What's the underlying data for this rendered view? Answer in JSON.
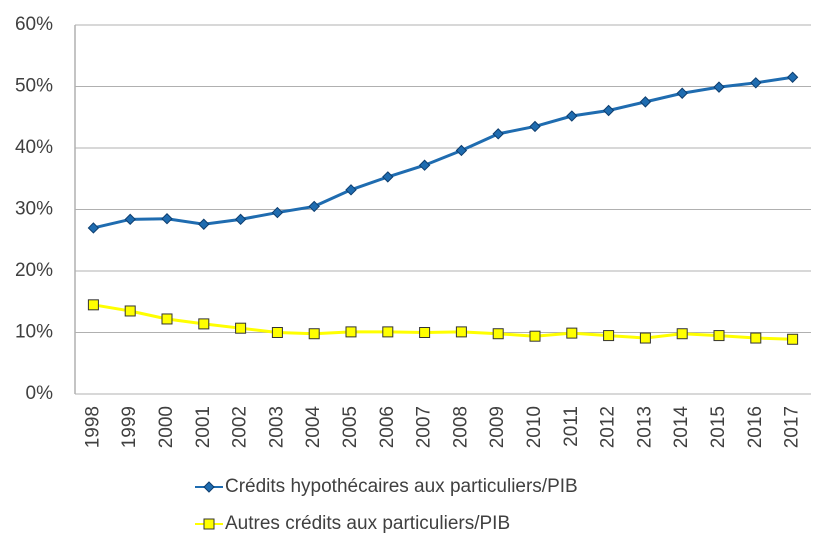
{
  "chart_data": {
    "type": "line",
    "categories": [
      "1998",
      "1999",
      "2000",
      "2001",
      "2002",
      "2003",
      "2004",
      "2005",
      "2006",
      "2007",
      "2008",
      "2009",
      "2010",
      "2011",
      "2012",
      "2013",
      "2014",
      "2015",
      "2016",
      "2017"
    ],
    "series": [
      {
        "name": "Crédits hypothécaires aux particuliers/PIB",
        "color": "#1f6cb0",
        "marker": "diamond",
        "values": [
          27.0,
          28.4,
          28.5,
          27.6,
          28.4,
          29.5,
          30.5,
          33.2,
          35.3,
          37.2,
          39.6,
          42.3,
          43.5,
          45.2,
          46.1,
          47.5,
          48.9,
          49.9,
          50.6,
          51.5
        ]
      },
      {
        "name": "Autres crédits aux particuliers/PIB",
        "color": "#ffff00",
        "marker": "square",
        "values": [
          14.5,
          13.5,
          12.2,
          11.4,
          10.7,
          10.0,
          9.8,
          10.1,
          10.1,
          10.0,
          10.1,
          9.8,
          9.4,
          9.9,
          9.5,
          9.1,
          9.8,
          9.5,
          9.1,
          8.9
        ]
      }
    ],
    "ylim": [
      0,
      60
    ],
    "yticks": [
      {
        "value": 0,
        "label": "0%"
      },
      {
        "value": 10,
        "label": "10%"
      },
      {
        "value": 20,
        "label": "20%"
      },
      {
        "value": 30,
        "label": "30%"
      },
      {
        "value": 40,
        "label": "40%"
      },
      {
        "value": 50,
        "label": "50%"
      },
      {
        "value": 60,
        "label": "60%"
      }
    ],
    "grid": true,
    "legend": "bottom"
  }
}
